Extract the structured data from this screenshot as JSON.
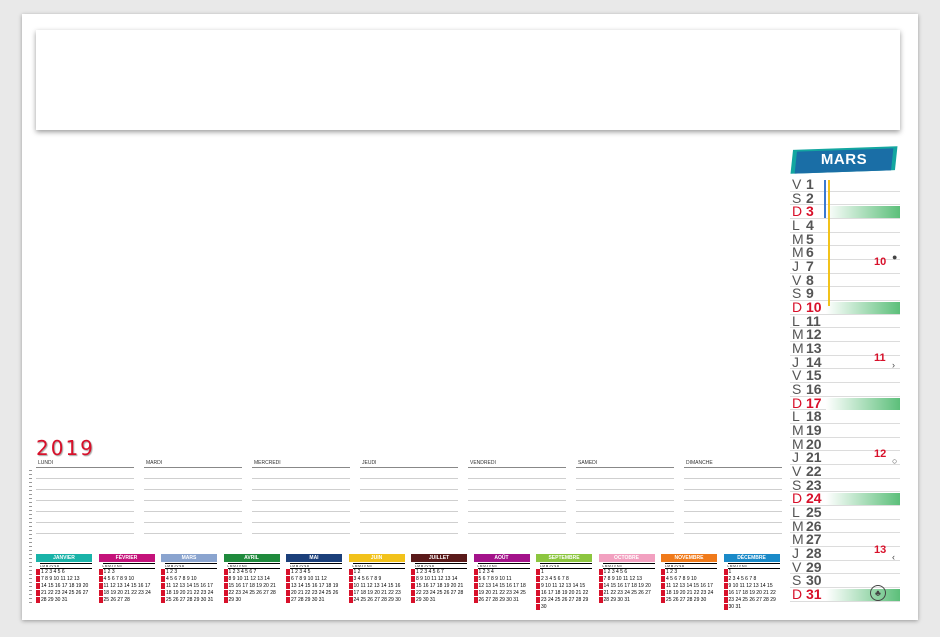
{
  "header": {
    "blank": ""
  },
  "year": "2019",
  "month": {
    "title": "MARS",
    "days": [
      {
        "l": "V",
        "n": "1"
      },
      {
        "l": "S",
        "n": "2"
      },
      {
        "l": "D",
        "n": "3"
      },
      {
        "l": "L",
        "n": "4"
      },
      {
        "l": "M",
        "n": "5"
      },
      {
        "l": "M",
        "n": "6"
      },
      {
        "l": "J",
        "n": "7"
      },
      {
        "l": "V",
        "n": "8"
      },
      {
        "l": "S",
        "n": "9"
      },
      {
        "l": "D",
        "n": "10"
      },
      {
        "l": "L",
        "n": "11"
      },
      {
        "l": "M",
        "n": "12"
      },
      {
        "l": "M",
        "n": "13"
      },
      {
        "l": "J",
        "n": "14"
      },
      {
        "l": "V",
        "n": "15"
      },
      {
        "l": "S",
        "n": "16"
      },
      {
        "l": "D",
        "n": "17"
      },
      {
        "l": "L",
        "n": "18"
      },
      {
        "l": "M",
        "n": "19"
      },
      {
        "l": "M",
        "n": "20"
      },
      {
        "l": "J",
        "n": "21"
      },
      {
        "l": "V",
        "n": "22"
      },
      {
        "l": "S",
        "n": "23"
      },
      {
        "l": "D",
        "n": "24"
      },
      {
        "l": "L",
        "n": "25"
      },
      {
        "l": "M",
        "n": "26"
      },
      {
        "l": "M",
        "n": "27"
      },
      {
        "l": "J",
        "n": "28"
      },
      {
        "l": "V",
        "n": "29"
      },
      {
        "l": "S",
        "n": "30"
      },
      {
        "l": "D",
        "n": "31"
      }
    ],
    "week_numbers": [
      "10",
      "11",
      "12",
      "13"
    ]
  },
  "week_days": [
    "LUNDI",
    "MARDI",
    "MERCREDI",
    "JEUDI",
    "VENDREDI",
    "SAMEDI",
    "DIMANCHE"
  ],
  "mini_head": "L M M J V S D",
  "mini_months": [
    {
      "name": "JANVIER",
      "color": "#19b3a8",
      "rows": [
        "  1 2 3 4 5 6",
        "7 8 9 10 11 12 13",
        "14 15 16 17 18 19 20",
        "21 22 23 24 25 26 27",
        "28 29 30 31"
      ]
    },
    {
      "name": "FÉVRIER",
      "color": "#c4127a",
      "rows": [
        "  1 2 3",
        "4 5 6 7 8 9 10",
        "11 12 13 14 15 16 17",
        "18 19 20 21 22 23 24",
        "25 26 27 28"
      ]
    },
    {
      "name": "MARS",
      "color": "#8aa4cf",
      "rows": [
        "  1 2 3",
        "4 5 6 7 8 9 10",
        "11 12 13 14 15 16 17",
        "18 19 20 21 22 23 24",
        "25 26 27 28 29 30 31"
      ]
    },
    {
      "name": "AVRIL",
      "color": "#1f8a3c",
      "rows": [
        "1 2 3 4 5 6 7",
        "8 9 10 11 12 13 14",
        "15 16 17 18 19 20 21",
        "22 23 24 25 26 27 28",
        "29 30"
      ]
    },
    {
      "name": "MAI",
      "color": "#1b3f7a",
      "rows": [
        "  1 2 3 4 5",
        "6 7 8 9 10 11 12",
        "13 14 15 16 17 18 19",
        "20 21 22 23 24 25 26",
        "27 28 29 30 31"
      ]
    },
    {
      "name": "JUIN",
      "color": "#f2c21a",
      "rows": [
        "  1 2",
        "3 4 5 6 7 8 9",
        "10 11 12 13 14 15 16",
        "17 18 19 20 21 22 23",
        "24 25 26 27 28 29 30"
      ]
    },
    {
      "name": "JUILLET",
      "color": "#5a1a1a",
      "rows": [
        "1 2 3 4 5 6 7",
        "8 9 10 11 12 13 14",
        "15 16 17 18 19 20 21",
        "22 23 24 25 26 27 28",
        "29 30 31"
      ]
    },
    {
      "name": "AOÛT",
      "color": "#a3128a",
      "rows": [
        "  1 2 3 4",
        "5 6 7 8 9 10 11",
        "12 13 14 15 16 17 18",
        "19 20 21 22 23 24 25",
        "26 27 28 29 30 31"
      ]
    },
    {
      "name": "SEPTEMBRE",
      "color": "#8cc63f",
      "rows": [
        "  1",
        "2 3 4 5 6 7 8",
        "9 10 11 12 13 14 15",
        "16 17 18 19 20 21 22",
        "23 24 25 26 27 28 29",
        "30"
      ]
    },
    {
      "name": "OCTOBRE",
      "color": "#f2a0c0",
      "rows": [
        "  1 2 3 4 5 6",
        "7 8 9 10 11 12 13",
        "14 15 16 17 18 19 20",
        "21 22 23 24 25 26 27",
        "28 29 30 31"
      ]
    },
    {
      "name": "NOVEMBRE",
      "color": "#f07a1a",
      "rows": [
        "  1 2 3",
        "4 5 6 7 8 9 10",
        "11 12 13 14 15 16 17",
        "18 19 20 21 22 23 24",
        "25 26 27 28 29 30"
      ]
    },
    {
      "name": "DÉCEMBRE",
      "color": "#1a8ac8",
      "rows": [
        "  1",
        "2 3 4 5 6 7 8",
        "9 10 11 12 13 14 15",
        "16 17 18 19 20 21 22",
        "23 24 25 26 27 28 29",
        "30 31"
      ]
    }
  ]
}
